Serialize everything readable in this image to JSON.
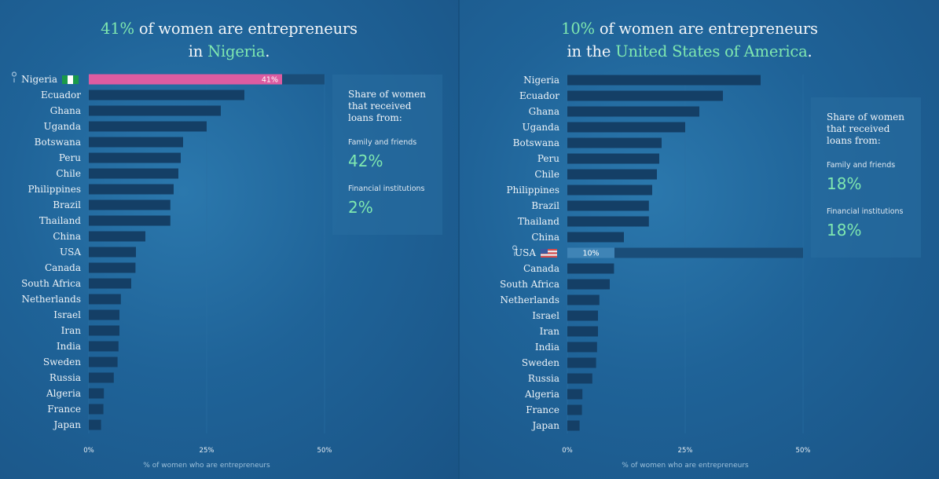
{
  "colors": {
    "accent": "#7fe8b0",
    "highlight_bar": "#dd5ca1",
    "highlight_bar_alt": "#3f84b6",
    "bar": "#143f66",
    "track": "#1a4d78"
  },
  "panels": [
    {
      "title": {
        "prefix": "41%",
        "middle": " of women are entrepreneurs",
        "line2_prefix": "in ",
        "country": "Nigeria",
        "suffix": "."
      },
      "highlight_country": "Nigeria",
      "highlight_flag": "nigeria-flag-icon",
      "highlight_label": "41%",
      "box": {
        "heading": "Share of women that received loans from:",
        "items": [
          {
            "label": "Family and friends",
            "value": "42%"
          },
          {
            "label": "Financial institutions",
            "value": "2%"
          }
        ]
      }
    },
    {
      "title": {
        "prefix": "10%",
        "middle": " of women are entrepreneurs",
        "line2_prefix": "in the ",
        "country": "United States of America",
        "suffix": "."
      },
      "highlight_country": "USA",
      "highlight_flag": "usa-flag-icon",
      "highlight_label": "10%",
      "box": {
        "heading": "Share of women that received loans from:",
        "items": [
          {
            "label": "Family and friends",
            "value": "18%"
          },
          {
            "label": "Financial institutions",
            "value": "18%"
          }
        ]
      }
    }
  ],
  "chart_data": {
    "type": "bar",
    "orientation": "horizontal",
    "categories": [
      "Nigeria",
      "Ecuador",
      "Ghana",
      "Uganda",
      "Botswana",
      "Peru",
      "Chile",
      "Philippines",
      "Brazil",
      "Thailand",
      "China",
      "USA",
      "Canada",
      "South Africa",
      "Netherlands",
      "Israel",
      "Iran",
      "India",
      "Sweden",
      "Russia",
      "Algeria",
      "France",
      "Japan"
    ],
    "values": [
      41,
      33,
      28,
      25,
      20,
      19.5,
      19,
      18,
      17.3,
      17.3,
      12,
      10,
      9.9,
      9,
      6.8,
      6.5,
      6.5,
      6.3,
      6.1,
      5.3,
      3.2,
      3.1,
      2.6
    ],
    "xlabel": "% of women who are entrepreneurs",
    "xlim": [
      0,
      50
    ],
    "xticks": [
      "0%",
      "25%",
      "50%"
    ],
    "grid": true
  }
}
